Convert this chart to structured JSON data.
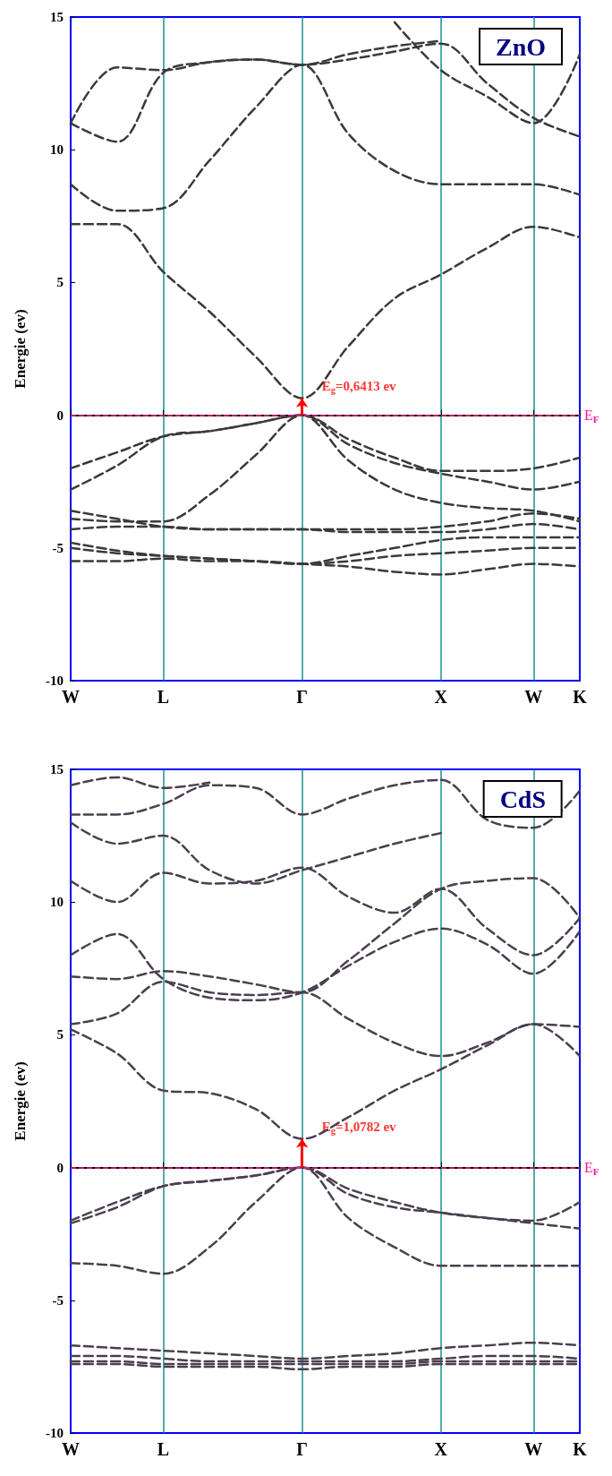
{
  "chart_data": [
    {
      "type": "line",
      "title": "ZnO",
      "ylabel": "Energie (ev)",
      "line_style": "dashed",
      "marker": "none",
      "grid": "x",
      "categories": [
        "W",
        null,
        "L",
        null,
        null,
        "Γ",
        null,
        null,
        "X",
        null,
        "W",
        "K"
      ],
      "ylim": [
        -10,
        15
      ],
      "yticks": [
        -10,
        -5,
        0,
        5,
        10,
        15
      ],
      "series": [
        {
          "color": "#3a3a3a",
          "values": [
            -2.0,
            -1.4,
            -0.8,
            -0.6,
            -0.3,
            0,
            -0.9,
            -1.6,
            -2.1,
            -2.1,
            -2.0,
            -1.6
          ]
        },
        {
          "color": "#3a3a3a",
          "values": [
            -2.8,
            -1.9,
            -0.8,
            -0.6,
            -0.3,
            0,
            -1.1,
            -1.8,
            -2.2,
            -2.5,
            -2.8,
            -2.5
          ]
        },
        {
          "color": "#3a3a3a",
          "values": [
            -3.9,
            -4.0,
            -4.0,
            -3.0,
            -1.5,
            0,
            -1.7,
            -2.8,
            -3.3,
            -3.5,
            -3.6,
            -4.0
          ]
        },
        {
          "color": "#3a3a3a",
          "values": [
            -3.6,
            -3.9,
            -4.2,
            -4.3,
            -4.3,
            -4.3,
            -4.3,
            -4.3,
            -4.2,
            -4.0,
            -3.7,
            -3.9
          ]
        },
        {
          "color": "#3a3a3a",
          "values": [
            -4.3,
            -4.2,
            -4.2,
            -4.3,
            -4.3,
            -4.3,
            -4.4,
            -4.4,
            -4.4,
            -4.3,
            -4.1,
            -4.3
          ]
        },
        {
          "color": "#3a3a3a",
          "values": [
            -4.8,
            -5.1,
            -5.3,
            -5.4,
            -5.5,
            -5.6,
            -5.3,
            -5.0,
            -4.7,
            -4.6,
            -4.6,
            -4.6
          ]
        },
        {
          "color": "#3a3a3a",
          "values": [
            -5.0,
            -5.2,
            -5.3,
            -5.4,
            -5.5,
            -5.6,
            -5.5,
            -5.3,
            -5.2,
            -5.1,
            -5.0,
            -5.0
          ]
        },
        {
          "color": "#3a3a3a",
          "values": [
            -5.5,
            -5.5,
            -5.4,
            -5.5,
            -5.5,
            -5.6,
            -5.7,
            -5.9,
            -6.0,
            -5.8,
            -5.6,
            -5.7
          ]
        },
        {
          "color": "#3a3a3a",
          "values": [
            7.2,
            7.2,
            5.4,
            3.9,
            2.2,
            0.64,
            2.6,
            4.4,
            5.3,
            6.3,
            7.1,
            6.7
          ]
        },
        {
          "color": "#3a3a3a",
          "values": [
            8.7,
            7.7,
            7.8,
            9.6,
            11.6,
            13.2,
            10.6,
            9.2,
            8.7,
            8.7,
            8.7,
            8.3
          ]
        },
        {
          "color": "#3a3a3a",
          "values": [
            11.0,
            10.3,
            12.9,
            13.3,
            13.4,
            13.2,
            13.4,
            13.7,
            14.0,
            12.5,
            11.2,
            10.5
          ]
        },
        {
          "color": "#3a3a3a",
          "values": [
            11.0,
            13.1,
            13.0,
            13.3,
            13.4,
            13.2,
            13.6,
            13.9,
            14.1,
            null,
            null,
            null
          ]
        },
        {
          "color": "#3a3a3a",
          "values": [
            null,
            null,
            null,
            null,
            null,
            null,
            null,
            14.8,
            13.0,
            12.0,
            11.0,
            13.6
          ]
        }
      ],
      "ref_lines": [
        {
          "axis": "y",
          "value": 0,
          "label": "E$_{F}$",
          "color": "#ff1493",
          "line_style": "dashed"
        }
      ],
      "annotations": [
        {
          "text": "E$_{g}$=0,6413 ev",
          "x": "Γ",
          "y": 0.64
        }
      ]
    },
    {
      "type": "line",
      "title": "CdS",
      "ylabel": "Energie (ev)",
      "line_style": "dashed",
      "marker": "none",
      "grid": "x",
      "categories": [
        "W",
        null,
        "L",
        null,
        null,
        "Γ",
        null,
        null,
        "X",
        null,
        "W",
        "K"
      ],
      "ylim": [
        -10,
        15
      ],
      "yticks": [
        -10,
        -5,
        0,
        5,
        10,
        15
      ],
      "series": [
        {
          "color": "#4b3f4f",
          "values": [
            -2.0,
            -1.3,
            -0.7,
            -0.5,
            -0.3,
            0,
            -0.8,
            -1.3,
            -1.7,
            -1.9,
            -2.0,
            -1.3
          ]
        },
        {
          "color": "#4b3f4f",
          "values": [
            -2.1,
            -1.5,
            -0.7,
            -0.5,
            -0.3,
            0,
            -1.0,
            -1.5,
            -1.7,
            -1.9,
            -2.1,
            -2.3
          ]
        },
        {
          "color": "#4b3f4f",
          "values": [
            -3.6,
            -3.7,
            -4.0,
            -3.0,
            -1.3,
            0,
            -1.9,
            -3.0,
            -3.7,
            -3.7,
            -3.7,
            -3.7
          ]
        },
        {
          "color": "#4b3f4f",
          "values": [
            -6.7,
            -6.8,
            -6.9,
            -7.0,
            -7.1,
            -7.2,
            -7.1,
            -7.0,
            -6.8,
            -6.7,
            -6.6,
            -6.7
          ]
        },
        {
          "color": "#4b3f4f",
          "values": [
            -7.1,
            -7.1,
            -7.2,
            -7.3,
            -7.3,
            -7.3,
            -7.3,
            -7.3,
            -7.2,
            -7.1,
            -7.1,
            -7.2
          ]
        },
        {
          "color": "#4b3f4f",
          "values": [
            -7.3,
            -7.3,
            -7.4,
            -7.4,
            -7.4,
            -7.4,
            -7.4,
            -7.4,
            -7.3,
            -7.3,
            -7.3,
            -7.3
          ]
        },
        {
          "color": "#4b3f4f",
          "values": [
            -7.4,
            -7.4,
            -7.5,
            -7.5,
            -7.5,
            -7.6,
            -7.5,
            -7.5,
            -7.4,
            -7.4,
            -7.4,
            -7.4
          ]
        },
        {
          "color": "#4b3f4f",
          "values": [
            5.2,
            4.3,
            2.9,
            2.8,
            2.2,
            1.08,
            1.9,
            2.9,
            3.7,
            4.6,
            5.4,
            5.3
          ]
        },
        {
          "color": "#4b3f4f",
          "values": [
            5.4,
            5.8,
            7.0,
            6.6,
            6.5,
            6.6,
            5.6,
            4.7,
            4.2,
            4.7,
            5.4,
            4.2
          ]
        },
        {
          "color": "#4b3f4f",
          "values": [
            7.2,
            7.1,
            7.4,
            7.2,
            6.9,
            6.6,
            7.8,
            9.2,
            10.5,
            10.8,
            10.9,
            9.4
          ]
        },
        {
          "color": "#4b3f4f",
          "values": [
            8.0,
            8.8,
            7.1,
            6.4,
            6.3,
            6.6,
            7.6,
            8.5,
            9.0,
            8.4,
            7.3,
            8.9
          ]
        },
        {
          "color": "#4b3f4f",
          "values": [
            10.8,
            10.0,
            11.1,
            10.7,
            10.8,
            11.3,
            10.2,
            9.6,
            10.5,
            9.0,
            8.0,
            9.4
          ]
        },
        {
          "color": "#4b3f4f",
          "values": [
            13.0,
            12.2,
            12.5,
            11.2,
            10.7,
            11.2,
            11.7,
            12.2,
            12.6,
            null,
            null,
            null
          ]
        },
        {
          "color": "#4b3f4f",
          "values": [
            13.3,
            13.3,
            13.7,
            14.4,
            14.3,
            13.3,
            13.9,
            14.4,
            14.6,
            13.1,
            12.8,
            14.2
          ]
        },
        {
          "color": "#4b3f4f",
          "values": [
            14.4,
            14.7,
            14.3,
            14.5,
            null,
            null,
            null,
            null,
            null,
            null,
            null,
            null
          ]
        }
      ],
      "ref_lines": [
        {
          "axis": "y",
          "value": 0,
          "label": "E$_{F}$",
          "color": "#ff1493",
          "line_style": "dashed"
        }
      ],
      "annotations": [
        {
          "text": "E$_{g}$=1,0782 ev",
          "x": "Γ",
          "y": 1.08
        }
      ]
    }
  ]
}
